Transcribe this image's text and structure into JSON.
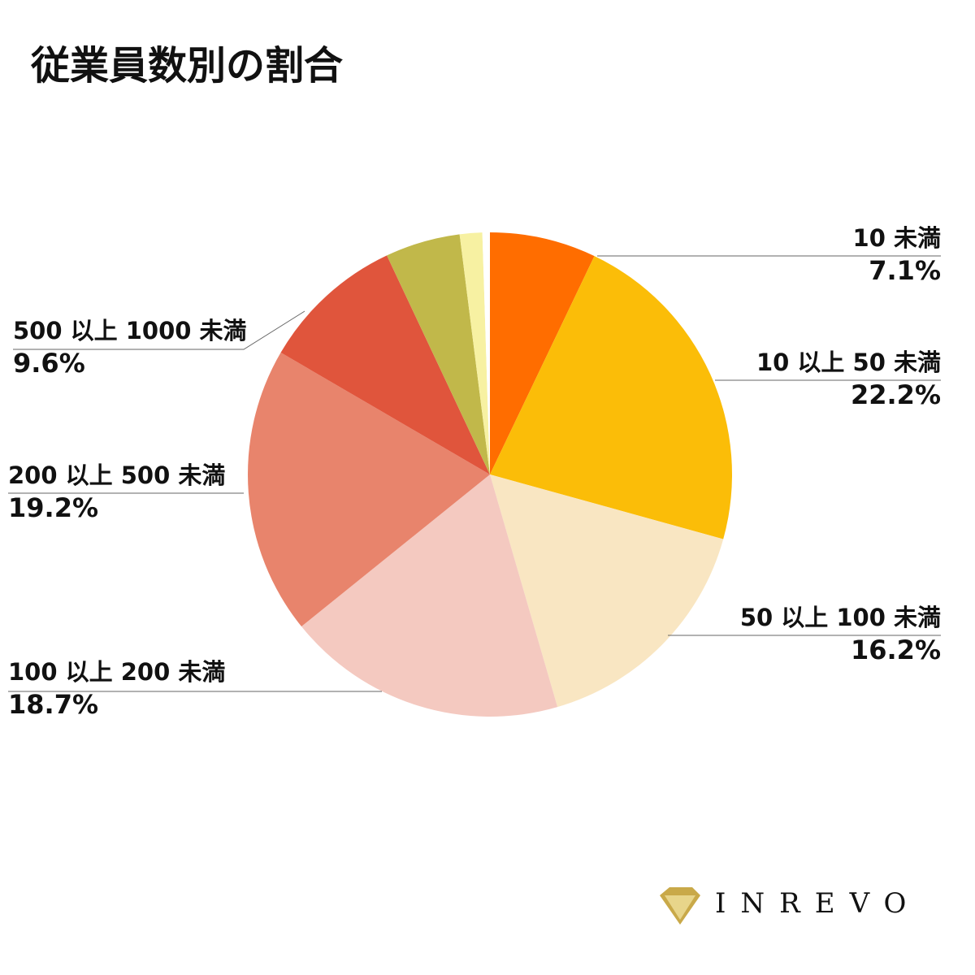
{
  "chart_data": {
    "type": "pie",
    "title": "従業員数別の割合",
    "categories": [
      "10 未満",
      "10 以上 50 未満",
      "50 以上 100 未満",
      "100 以上 200 未満",
      "200 以上 500 未満",
      "500 以上 1000 未満",
      null,
      null,
      null
    ],
    "values": [
      7.1,
      22.2,
      16.2,
      18.7,
      19.2,
      9.6,
      5.0,
      1.5,
      0.5
    ],
    "value_labels": [
      "7.1%",
      "22.2%",
      "16.2%",
      "18.7%",
      "19.2%",
      "9.6%",
      null,
      null,
      null
    ],
    "colors": [
      "#ff6d00",
      "#fbbd08",
      "#f9e6c2",
      "#f4c9c0",
      "#e8846c",
      "#e0553c",
      "#c1b84a",
      "#f7f1a2",
      "#ffffff"
    ]
  },
  "logo": "INREVO"
}
